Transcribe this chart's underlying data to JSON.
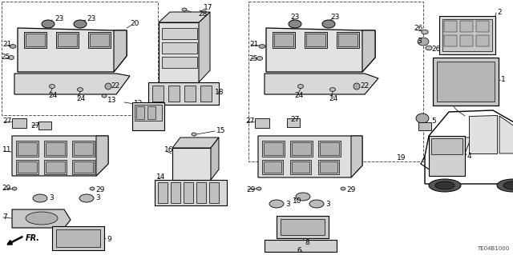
{
  "bg_color": "#ffffff",
  "diagram_id": "TE04B1000",
  "fig_width": 6.4,
  "fig_height": 3.19,
  "dpi": 100
}
